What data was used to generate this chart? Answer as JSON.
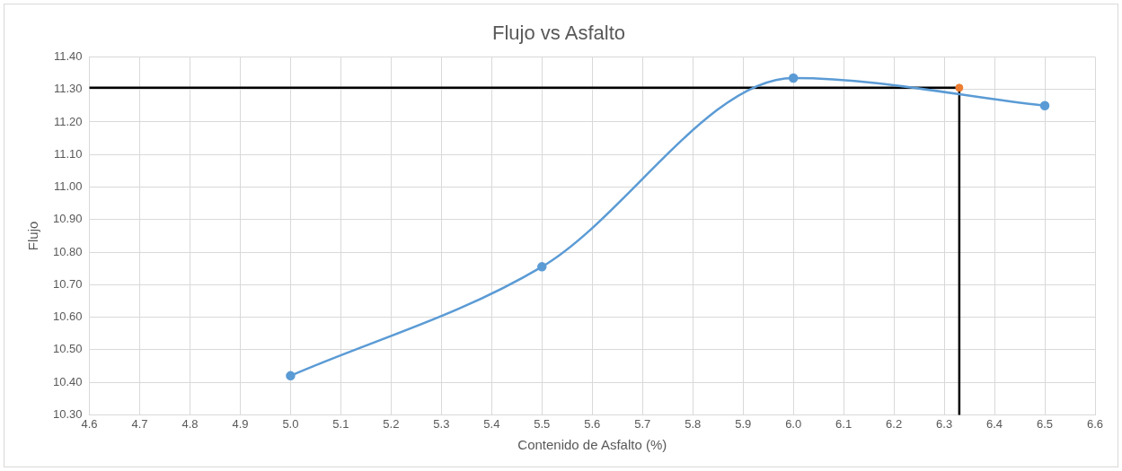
{
  "chart_data": {
    "type": "line",
    "title": "Flujo vs Asfalto",
    "xlabel": "Contenido de Asfalto (%)",
    "ylabel": "Flujo",
    "series": [
      {
        "color": "#5b9bd5",
        "x": [
          5.0,
          5.5,
          6.0,
          6.5
        ],
        "values": [
          10.42,
          10.755,
          11.335,
          11.25
        ],
        "marker": "circle"
      },
      {
        "type": "scatter",
        "color": "#ed7d31",
        "x": [
          6.33
        ],
        "values": [
          11.305
        ],
        "marker": "circle"
      },
      {
        "color": "#000000",
        "x": [
          4.6,
          6.33,
          6.33
        ],
        "values": [
          11.305,
          11.305,
          10.3
        ],
        "marker": "none"
      }
    ],
    "xlim": [
      4.6,
      6.6
    ],
    "xticks": [
      4.6,
      4.7,
      4.8,
      4.9,
      {
        "value": 5.0,
        "label": "5.0"
      },
      5.1,
      5.2,
      5.3,
      5.4,
      5.5,
      5.6,
      5.7,
      5.8,
      5.9,
      {
        "value": 6.0,
        "label": "6.0"
      },
      6.1,
      6.2,
      6.3,
      6.4,
      6.5,
      {
        "value": 6.6,
        "label": "6.6"
      }
    ],
    "ylim": [
      10.3,
      11.4
    ],
    "yticks": [
      {
        "value": 10.3,
        "label": "10.30"
      },
      {
        "value": 10.4,
        "label": "10.40"
      },
      {
        "value": 10.5,
        "label": "10.50"
      },
      {
        "value": 10.6,
        "label": "10.60"
      },
      {
        "value": 10.7,
        "label": "10.70"
      },
      {
        "value": 10.8,
        "label": "10.80"
      },
      {
        "value": 10.9,
        "label": "10.90"
      },
      {
        "value": 11.0,
        "label": "11.00"
      },
      {
        "value": 11.1,
        "label": "11.10"
      },
      {
        "value": 11.2,
        "label": "11.20"
      },
      {
        "value": 11.3,
        "label": "11.30"
      },
      {
        "value": 11.4,
        "label": "11.40"
      }
    ],
    "grid": true,
    "legend": false
  }
}
